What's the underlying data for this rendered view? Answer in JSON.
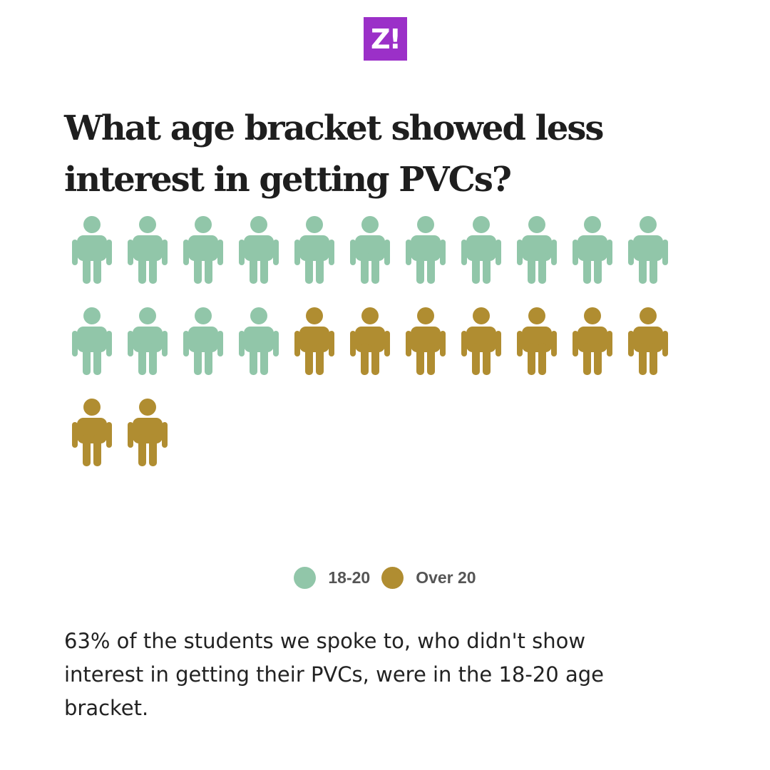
{
  "logo": {
    "text": "Z!",
    "color": "#9b30c8"
  },
  "chart_data": {
    "type": "pictogram",
    "title": "What age bracket showed less interest in getting PVCs?",
    "series": [
      {
        "name": "18-20",
        "count": 15,
        "color": "#91c6a9"
      },
      {
        "name": "Over 20",
        "count": 9,
        "color": "#b08d31"
      }
    ],
    "total": 24,
    "icons_per_row": 11,
    "icon": "person-icon"
  },
  "caption": "63% of the students we spoke to, who didn't show interest in getting their PVCs, were in the 18-20 age bracket."
}
